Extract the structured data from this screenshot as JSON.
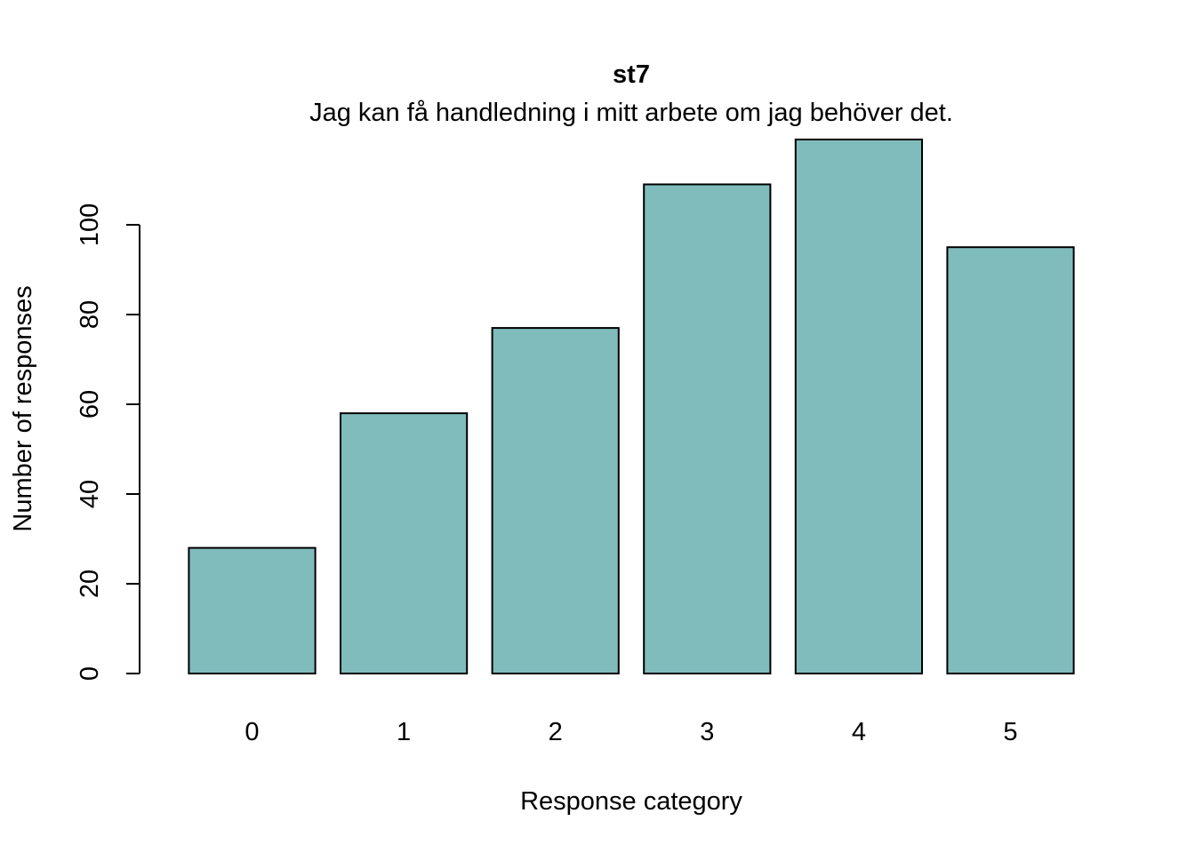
{
  "chart_data": {
    "type": "bar",
    "title": "st7",
    "subtitle": "Jag kan få handledning i mitt arbete om jag behöver det.",
    "xlabel": "Response category",
    "ylabel": "Number of responses",
    "categories": [
      "0",
      "1",
      "2",
      "3",
      "4",
      "5"
    ],
    "values": [
      28,
      58,
      77,
      109,
      119,
      95
    ],
    "ylim": [
      0,
      119
    ],
    "yticks": [
      0,
      20,
      40,
      60,
      80,
      100
    ],
    "bar_color": "#80BCBC",
    "grid": false,
    "legend": "none"
  }
}
